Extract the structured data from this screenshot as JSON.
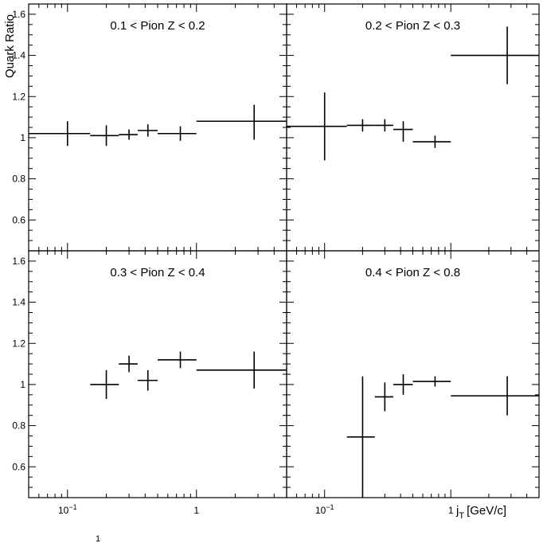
{
  "figure": {
    "ylabel": "Quark Ratio",
    "xlabel_main": "j",
    "xlabel_sub": "T",
    "xlabel_unit": "[GeV/c]",
    "footnote": "1"
  },
  "chart_data": [
    {
      "type": "scatter",
      "title": "0.1 < Pion Z < 0.2",
      "xscale": "log",
      "xlim": [
        0.05,
        5
      ],
      "ylim": [
        0.45,
        1.65
      ],
      "yticks": [
        "0.6",
        "0.8",
        "1",
        "1.2",
        "1.4",
        "1.6"
      ],
      "xticks": [],
      "points": [
        {
          "x": 0.1,
          "xlo": 0.05,
          "xhi": 0.15,
          "y": 1.02,
          "ylo": 0.96,
          "yhi": 1.08
        },
        {
          "x": 0.2,
          "xlo": 0.15,
          "xhi": 0.25,
          "y": 1.01,
          "ylo": 0.96,
          "yhi": 1.06
        },
        {
          "x": 0.3,
          "xlo": 0.25,
          "xhi": 0.35,
          "y": 1.015,
          "ylo": 0.99,
          "yhi": 1.04
        },
        {
          "x": 0.42,
          "xlo": 0.35,
          "xhi": 0.5,
          "y": 1.035,
          "ylo": 1.005,
          "yhi": 1.065
        },
        {
          "x": 0.75,
          "xlo": 0.5,
          "xhi": 1.0,
          "y": 1.02,
          "ylo": 0.985,
          "yhi": 1.055
        },
        {
          "x": 2.8,
          "xlo": 1.0,
          "xhi": 5.0,
          "y": 1.08,
          "ylo": 0.99,
          "yhi": 1.16
        }
      ]
    },
    {
      "type": "scatter",
      "title": "0.2 < Pion Z < 0.3",
      "xscale": "log",
      "xlim": [
        0.05,
        5
      ],
      "ylim": [
        0.45,
        1.65
      ],
      "yticks": [],
      "xticks": [],
      "points": [
        {
          "x": 0.1,
          "xlo": 0.05,
          "xhi": 0.15,
          "y": 1.055,
          "ylo": 0.89,
          "yhi": 1.22
        },
        {
          "x": 0.2,
          "xlo": 0.15,
          "xhi": 0.25,
          "y": 1.06,
          "ylo": 1.03,
          "yhi": 1.09
        },
        {
          "x": 0.3,
          "xlo": 0.25,
          "xhi": 0.35,
          "y": 1.06,
          "ylo": 1.03,
          "yhi": 1.09
        },
        {
          "x": 0.42,
          "xlo": 0.35,
          "xhi": 0.5,
          "y": 1.04,
          "ylo": 0.98,
          "yhi": 1.08
        },
        {
          "x": 0.75,
          "xlo": 0.5,
          "xhi": 1.0,
          "y": 0.98,
          "ylo": 0.95,
          "yhi": 1.01
        },
        {
          "x": 2.8,
          "xlo": 1.0,
          "xhi": 5.0,
          "y": 1.4,
          "ylo": 1.26,
          "yhi": 1.54
        }
      ]
    },
    {
      "type": "scatter",
      "title": "0.3 < Pion Z < 0.4",
      "xscale": "log",
      "xlim": [
        0.05,
        5
      ],
      "ylim": [
        0.45,
        1.65
      ],
      "yticks": [
        "0.6",
        "0.8",
        "1",
        "1.2",
        "1.4",
        "1.6"
      ],
      "xticks": [
        "10^-1",
        "1"
      ],
      "points": [
        {
          "x": 0.2,
          "xlo": 0.15,
          "xhi": 0.25,
          "y": 1.0,
          "ylo": 0.93,
          "yhi": 1.07
        },
        {
          "x": 0.3,
          "xlo": 0.25,
          "xhi": 0.35,
          "y": 1.1,
          "ylo": 1.06,
          "yhi": 1.14
        },
        {
          "x": 0.42,
          "xlo": 0.35,
          "xhi": 0.5,
          "y": 1.02,
          "ylo": 0.97,
          "yhi": 1.07
        },
        {
          "x": 0.75,
          "xlo": 0.5,
          "xhi": 1.0,
          "y": 1.12,
          "ylo": 1.08,
          "yhi": 1.16
        },
        {
          "x": 2.8,
          "xlo": 1.0,
          "xhi": 5.0,
          "y": 1.07,
          "ylo": 0.98,
          "yhi": 1.16
        }
      ]
    },
    {
      "type": "scatter",
      "title": "0.4 < Pion Z < 0.8",
      "xscale": "log",
      "xlim": [
        0.05,
        5
      ],
      "ylim": [
        0.45,
        1.65
      ],
      "yticks": [],
      "xticks": [
        "10^-1",
        "1"
      ],
      "points": [
        {
          "x": 0.2,
          "xlo": 0.15,
          "xhi": 0.25,
          "y": 0.745,
          "ylo": 0.45,
          "yhi": 1.04
        },
        {
          "x": 0.3,
          "xlo": 0.25,
          "xhi": 0.35,
          "y": 0.94,
          "ylo": 0.87,
          "yhi": 1.01
        },
        {
          "x": 0.42,
          "xlo": 0.35,
          "xhi": 0.5,
          "y": 1.0,
          "ylo": 0.95,
          "yhi": 1.05
        },
        {
          "x": 0.75,
          "xlo": 0.5,
          "xhi": 1.0,
          "y": 1.015,
          "ylo": 0.99,
          "yhi": 1.04
        },
        {
          "x": 2.8,
          "xlo": 1.0,
          "xhi": 5.0,
          "y": 0.945,
          "ylo": 0.85,
          "yhi": 1.04
        }
      ]
    }
  ]
}
